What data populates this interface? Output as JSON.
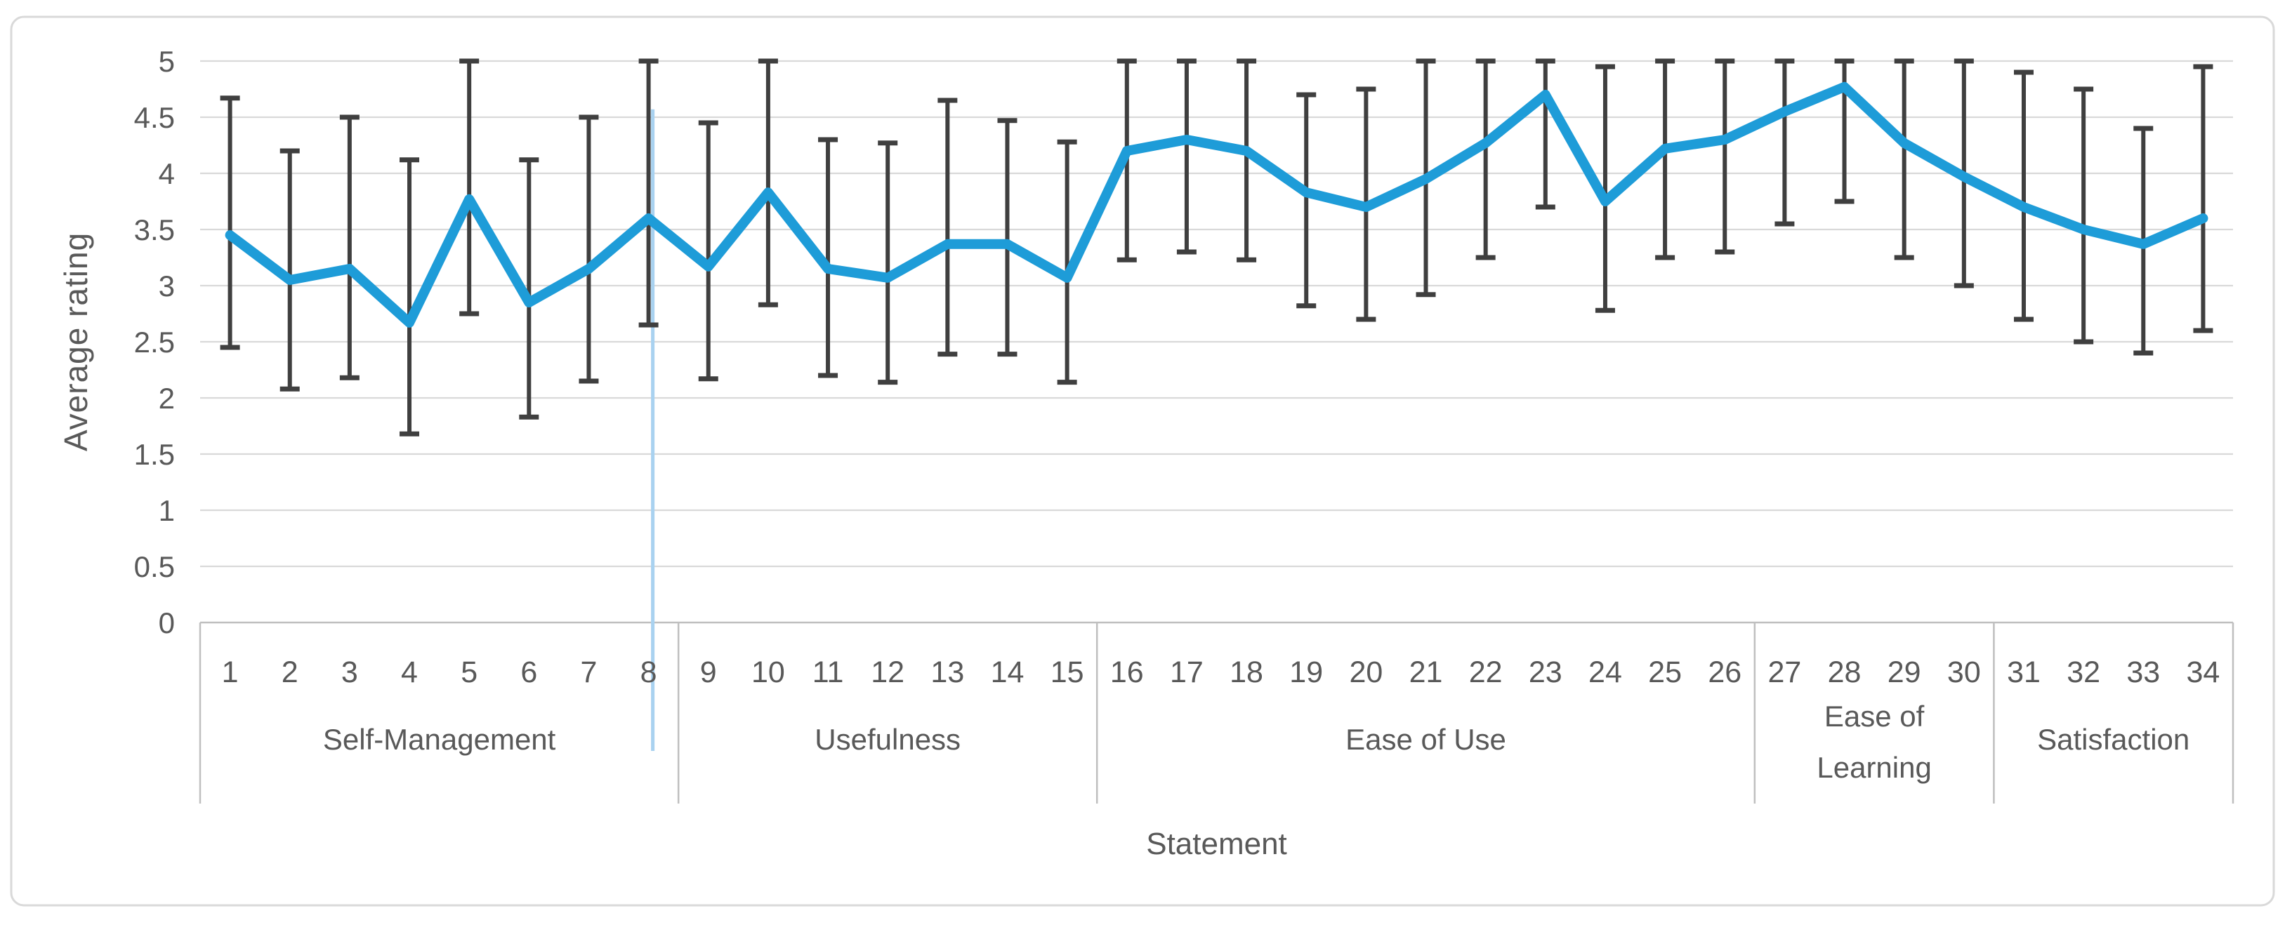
{
  "chart_data": {
    "type": "line",
    "title": "",
    "xlabel": "Statement",
    "ylabel": "Average rating",
    "ylim": [
      0,
      5
    ],
    "yticks": [
      0,
      0.5,
      1,
      1.5,
      2,
      2.5,
      3,
      3.5,
      4,
      4.5,
      5
    ],
    "grid": true,
    "legend": false,
    "error_bars": true,
    "x": [
      1,
      2,
      3,
      4,
      5,
      6,
      7,
      8,
      9,
      10,
      11,
      12,
      13,
      14,
      15,
      16,
      17,
      18,
      19,
      20,
      21,
      22,
      23,
      24,
      25,
      26,
      27,
      28,
      29,
      30,
      31,
      32,
      33,
      34
    ],
    "series": [
      {
        "name": "Average rating",
        "color": "#1E9CD8",
        "values": [
          3.45,
          3.05,
          3.15,
          2.67,
          3.77,
          2.85,
          3.15,
          3.6,
          3.17,
          3.83,
          3.15,
          3.07,
          3.37,
          3.37,
          3.07,
          4.2,
          4.3,
          4.2,
          3.83,
          3.7,
          3.95,
          4.27,
          4.7,
          3.75,
          4.22,
          4.3,
          4.55,
          4.77,
          4.27,
          3.97,
          3.7,
          3.5,
          3.37,
          3.6
        ],
        "error_low": [
          2.45,
          2.08,
          2.18,
          1.68,
          2.75,
          1.83,
          2.15,
          2.65,
          2.17,
          2.83,
          2.2,
          2.14,
          2.39,
          2.39,
          2.14,
          3.23,
          3.3,
          3.23,
          2.82,
          2.7,
          2.92,
          3.25,
          3.7,
          2.78,
          3.25,
          3.3,
          3.55,
          3.75,
          3.25,
          3.0,
          2.7,
          2.5,
          2.4,
          2.6
        ],
        "error_high": [
          4.67,
          4.2,
          4.5,
          4.12,
          5.0,
          4.12,
          4.5,
          5.0,
          4.45,
          5.0,
          4.3,
          4.27,
          4.65,
          4.47,
          4.28,
          5.0,
          5.0,
          5.0,
          4.7,
          4.75,
          5.0,
          5.0,
          5.0,
          4.95,
          5.0,
          5.0,
          5.0,
          5.0,
          5.0,
          5.0,
          4.9,
          4.75,
          4.4,
          4.95
        ]
      }
    ],
    "category_groups": [
      {
        "label": "Self-Management",
        "lines": [
          "Self-Management"
        ],
        "from": 1,
        "to": 8
      },
      {
        "label": "Usefulness",
        "lines": [
          "Usefulness"
        ],
        "from": 9,
        "to": 15
      },
      {
        "label": "Ease of Use",
        "lines": [
          "Ease of Use"
        ],
        "from": 16,
        "to": 26
      },
      {
        "label": "Ease of Learning",
        "lines": [
          "Ease of",
          "Learning"
        ],
        "from": 27,
        "to": 30
      },
      {
        "label": "Satisfaction",
        "lines": [
          "Satisfaction"
        ],
        "from": 31,
        "to": 34
      }
    ],
    "annotations": [
      {
        "type": "vertical-line",
        "statement": 8,
        "from_value": 4.57,
        "extends_below_axis": true,
        "color": "#A9D2F0"
      }
    ],
    "colors": {
      "line": "#1E9CD8",
      "error_bar": "#3F3F3F",
      "gridline": "#D9D9D9",
      "axis_line": "#BFBFBF",
      "text": "#595959",
      "figure_border": "#D9D9D9",
      "stray_line": "#A9D2F0",
      "background": "#FFFFFF"
    }
  }
}
